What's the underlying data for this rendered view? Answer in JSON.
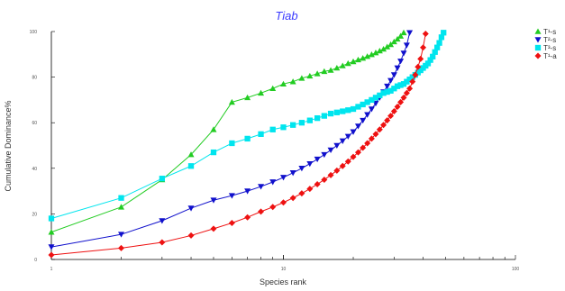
{
  "chart_data": {
    "type": "line",
    "title": "Tiab",
    "xlabel": "Species rank",
    "ylabel": "Cumulative Dominance%",
    "x_scale": "log",
    "x_ticks": [
      "1",
      "10",
      "100"
    ],
    "y_ticks": [
      "0",
      "20",
      "40",
      "60",
      "80",
      "100"
    ],
    "xlim": [
      1,
      100
    ],
    "ylim": [
      0,
      100
    ],
    "grid": false,
    "legend_position": "top-right",
    "series": [
      {
        "name": "T¹-s",
        "color": "#22cc22",
        "marker": "triangle-up",
        "x": [
          1,
          2,
          3,
          4,
          5,
          6,
          7,
          8,
          9,
          10,
          11,
          12,
          13,
          14,
          15,
          16,
          17,
          18,
          19,
          20,
          21,
          22,
          23,
          24,
          25,
          26,
          27,
          28,
          29,
          30,
          31,
          32,
          33
        ],
        "y": [
          12,
          23,
          35,
          46,
          57,
          69,
          71,
          73,
          75,
          77,
          78,
          79.5,
          80.5,
          81.5,
          82.5,
          83,
          84,
          85,
          86,
          86.8,
          87.6,
          88.3,
          89.1,
          89.9,
          90.7,
          91.5,
          92.3,
          93.3,
          94.3,
          95.5,
          96.7,
          98,
          99.5
        ]
      },
      {
        "name": "T²-s",
        "color": "#1010cc",
        "marker": "triangle-down",
        "x": [
          1,
          2,
          3,
          4,
          5,
          6,
          7,
          8,
          9,
          10,
          11,
          12,
          13,
          14,
          15,
          16,
          17,
          18,
          19,
          20,
          21,
          22,
          23,
          24,
          25,
          26,
          27,
          28,
          29,
          30,
          31,
          32,
          33,
          34,
          35
        ],
        "y": [
          5.5,
          11,
          17,
          22.5,
          26,
          28,
          30,
          32,
          34,
          36,
          38,
          40,
          42,
          44,
          46,
          48,
          50,
          52,
          54,
          56,
          58.5,
          61,
          63.5,
          66,
          68.5,
          71,
          73.5,
          76,
          78.5,
          81,
          84,
          87,
          90.5,
          94,
          99.5
        ]
      },
      {
        "name": "T³-s",
        "color": "#00e5ee",
        "marker": "square",
        "x": [
          1,
          2,
          3,
          4,
          5,
          6,
          7,
          8,
          9,
          10,
          11,
          12,
          13,
          14,
          15,
          16,
          17,
          18,
          19,
          20,
          21,
          22,
          23,
          24,
          25,
          26,
          27,
          28,
          29,
          30,
          31,
          32,
          33,
          34,
          35,
          36,
          37,
          38,
          39,
          40,
          41,
          42,
          43,
          44,
          45,
          46,
          47,
          48,
          49
        ],
        "y": [
          18,
          27,
          35.5,
          41,
          47,
          51,
          53,
          55,
          57,
          58,
          59,
          60,
          61,
          62,
          63,
          64,
          64.5,
          65,
          65.5,
          66,
          67,
          68,
          69,
          70,
          71,
          72,
          73,
          73.5,
          74,
          75,
          76,
          76.5,
          77,
          78,
          79,
          80,
          81,
          82,
          83,
          84,
          85,
          86,
          87.5,
          89,
          91,
          93,
          95,
          97.5,
          99.5
        ]
      },
      {
        "name": "T¹-a",
        "color": "#ee1111",
        "marker": "diamond",
        "x": [
          1,
          2,
          3,
          4,
          5,
          6,
          7,
          8,
          9,
          10,
          11,
          12,
          13,
          14,
          15,
          16,
          17,
          18,
          19,
          20,
          21,
          22,
          23,
          24,
          25,
          26,
          27,
          28,
          29,
          30,
          31,
          32,
          33,
          34,
          35,
          36,
          37,
          38,
          39,
          40,
          41
        ],
        "y": [
          2,
          5,
          7.5,
          10.5,
          13.5,
          16,
          18.5,
          21,
          23,
          25,
          27,
          29,
          31,
          33,
          35,
          37,
          39,
          41,
          43,
          45,
          47,
          49,
          51,
          53,
          55,
          57,
          59,
          61,
          63,
          65,
          67,
          69,
          71,
          73,
          75,
          78,
          81,
          84.5,
          88,
          93,
          99
        ]
      }
    ]
  }
}
